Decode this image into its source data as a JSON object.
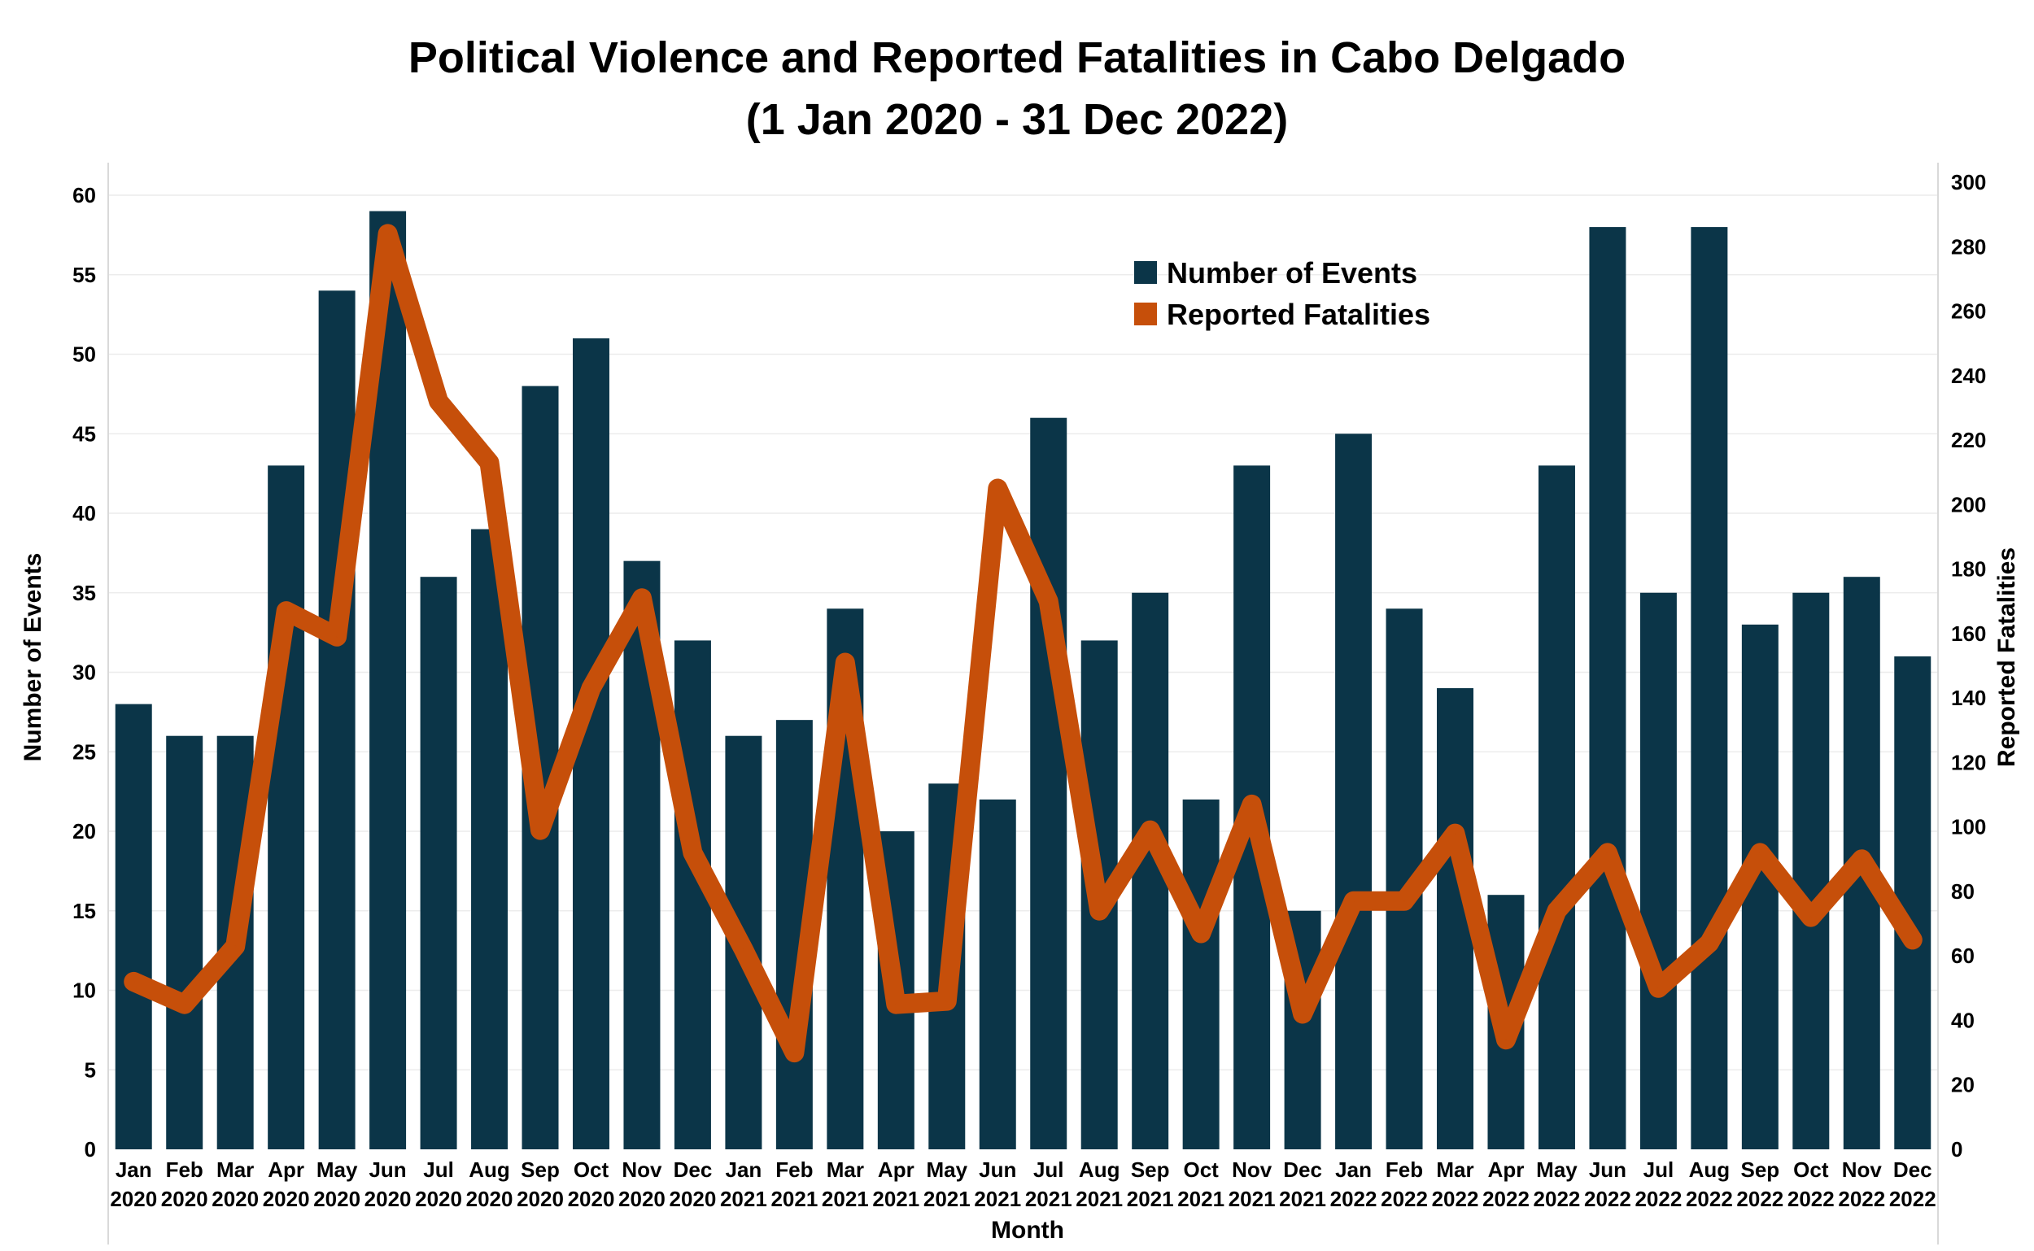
{
  "chart_data": {
    "type": "bar+line",
    "title": "Political Violence and Reported Fatalities in Cabo Delgado",
    "subtitle": "(1 Jan 2020 - 31 Dec 2022)",
    "xlabel": "Month",
    "ylabel_left": "Number of Events",
    "ylabel_right": "Reported Fatalities",
    "categories": [
      [
        "Jan",
        "2020"
      ],
      [
        "Feb",
        "2020"
      ],
      [
        "Mar",
        "2020"
      ],
      [
        "Apr",
        "2020"
      ],
      [
        "May",
        "2020"
      ],
      [
        "Jun",
        "2020"
      ],
      [
        "Jul",
        "2020"
      ],
      [
        "Aug",
        "2020"
      ],
      [
        "Sep",
        "2020"
      ],
      [
        "Oct",
        "2020"
      ],
      [
        "Nov",
        "2020"
      ],
      [
        "Dec",
        "2020"
      ],
      [
        "Jan",
        "2021"
      ],
      [
        "Feb",
        "2021"
      ],
      [
        "Mar",
        "2021"
      ],
      [
        "Apr",
        "2021"
      ],
      [
        "May",
        "2021"
      ],
      [
        "Jun",
        "2021"
      ],
      [
        "Jul",
        "2021"
      ],
      [
        "Aug",
        "2021"
      ],
      [
        "Sep",
        "2021"
      ],
      [
        "Oct",
        "2021"
      ],
      [
        "Nov",
        "2021"
      ],
      [
        "Dec",
        "2021"
      ],
      [
        "Jan",
        "2022"
      ],
      [
        "Feb",
        "2022"
      ],
      [
        "Mar",
        "2022"
      ],
      [
        "Apr",
        "2022"
      ],
      [
        "May",
        "2022"
      ],
      [
        "Jun",
        "2022"
      ],
      [
        "Jul",
        "2022"
      ],
      [
        "Aug",
        "2022"
      ],
      [
        "Sep",
        "2022"
      ],
      [
        "Oct",
        "2022"
      ],
      [
        "Nov",
        "2022"
      ],
      [
        "Dec",
        "2022"
      ]
    ],
    "series": [
      {
        "name": "Number of Events",
        "type": "bar",
        "axis": "left",
        "color": "#0b3548",
        "values": [
          28,
          26,
          26,
          43,
          54,
          59,
          36,
          39,
          48,
          51,
          37,
          32,
          26,
          27,
          34,
          20,
          23,
          22,
          46,
          32,
          35,
          22,
          43,
          15,
          45,
          34,
          29,
          16,
          43,
          58,
          35,
          58,
          33,
          35,
          36,
          31
        ]
      },
      {
        "name": "Reported Fatalities",
        "type": "line",
        "axis": "right",
        "color": "#c64f0a",
        "values": [
          52,
          45,
          63,
          167,
          159,
          284,
          232,
          213,
          99,
          143,
          171,
          92,
          62,
          30,
          151,
          45,
          46,
          205,
          170,
          74,
          99,
          67,
          107,
          42,
          77,
          77,
          98,
          34,
          74,
          92,
          50,
          64,
          92,
          72,
          90,
          65
        ]
      }
    ],
    "ylim_left": [
      0,
      60
    ],
    "yticks_left": [
      0,
      5,
      10,
      15,
      20,
      25,
      30,
      35,
      40,
      45,
      50,
      55,
      60
    ],
    "ylim_right": [
      0,
      300
    ],
    "yticks_right": [
      0,
      20,
      40,
      60,
      80,
      100,
      120,
      140,
      160,
      180,
      200,
      220,
      240,
      260,
      280,
      300
    ],
    "grid": true,
    "legend_position": "top-center"
  }
}
